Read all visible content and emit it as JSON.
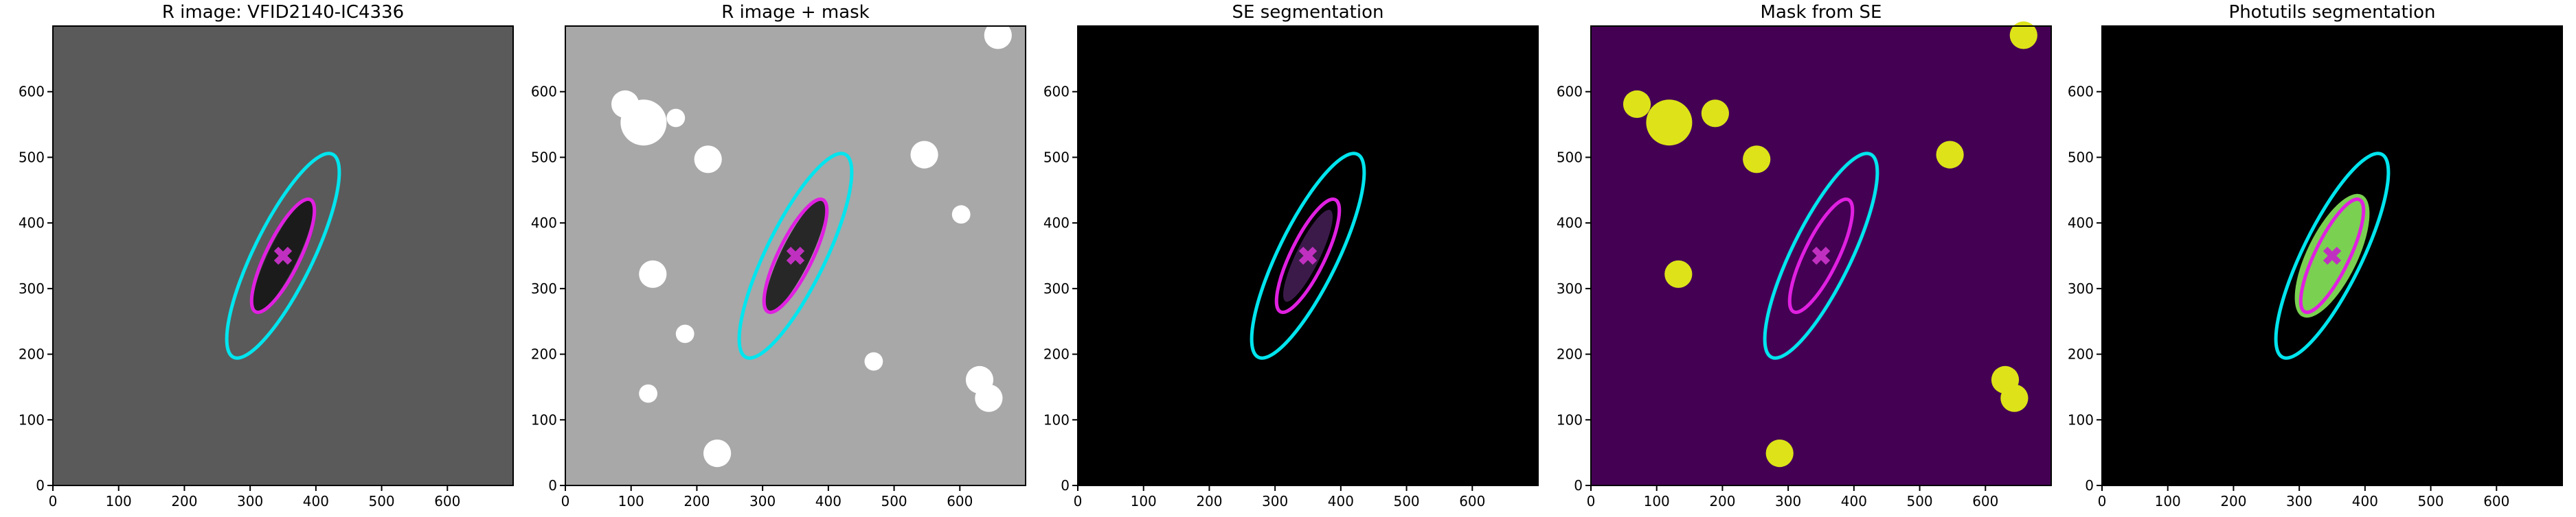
{
  "chart_data": [
    {
      "type": "image",
      "title": "R image: VFID2140-IC4336",
      "background": "#5a5a5a",
      "xlim": [
        0,
        700
      ],
      "ylim": [
        0,
        700
      ],
      "xticks": [
        0,
        100,
        200,
        300,
        400,
        500,
        600
      ],
      "yticks": [
        0,
        100,
        200,
        300,
        400,
        500,
        600
      ],
      "ellipses": [
        {
          "center": [
            350,
            350
          ],
          "semi_major": 172,
          "semi_minor": 45,
          "angle": 64,
          "color": "#00e5ee"
        },
        {
          "center": [
            350,
            350
          ],
          "semi_major": 95,
          "semi_minor": 26,
          "angle": 64,
          "color": "#e020e0"
        }
      ],
      "marker": {
        "x": 350,
        "y": 350,
        "color": "#c030c0"
      }
    },
    {
      "type": "image",
      "title": "R image + mask",
      "background": "#a8a8a8",
      "xlim": [
        0,
        700
      ],
      "ylim": [
        0,
        700
      ],
      "xticks": [
        0,
        100,
        200,
        300,
        400,
        500,
        600
      ],
      "yticks": [
        0,
        100,
        200,
        300,
        400,
        500,
        600
      ],
      "ellipses": [
        {
          "center": [
            350,
            350
          ],
          "semi_major": 172,
          "semi_minor": 45,
          "angle": 64,
          "color": "#00e5ee"
        },
        {
          "center": [
            350,
            350
          ],
          "semi_major": 95,
          "semi_minor": 26,
          "angle": 64,
          "color": "#e020e0"
        }
      ],
      "marker": {
        "x": 350,
        "y": 350,
        "color": "#c030c0"
      }
    },
    {
      "type": "image",
      "title": "SE segmentation",
      "background": "#000000",
      "xlim": [
        0,
        700
      ],
      "ylim": [
        0,
        700
      ],
      "xticks": [
        0,
        100,
        200,
        300,
        400,
        500,
        600
      ],
      "yticks": [
        0,
        100,
        200,
        300,
        400,
        500,
        600
      ],
      "ellipses": [
        {
          "center": [
            350,
            350
          ],
          "semi_major": 172,
          "semi_minor": 45,
          "angle": 64,
          "color": "#00e5ee"
        },
        {
          "center": [
            350,
            350
          ],
          "semi_major": 95,
          "semi_minor": 26,
          "angle": 64,
          "color": "#e020e0"
        }
      ],
      "marker": {
        "x": 350,
        "y": 350,
        "color": "#c030c0"
      }
    },
    {
      "type": "image",
      "title": "Mask from SE",
      "background": "#440154",
      "xlim": [
        0,
        700
      ],
      "ylim": [
        0,
        700
      ],
      "xticks": [
        0,
        100,
        200,
        300,
        400,
        500,
        600
      ],
      "yticks": [
        0,
        100,
        200,
        300,
        400,
        500,
        600
      ],
      "ellipses": [
        {
          "center": [
            350,
            350
          ],
          "semi_major": 172,
          "semi_minor": 45,
          "angle": 64,
          "color": "#00e5ee"
        },
        {
          "center": [
            350,
            350
          ],
          "semi_major": 95,
          "semi_minor": 26,
          "angle": 64,
          "color": "#e020e0"
        }
      ],
      "marker": {
        "x": 350,
        "y": 350,
        "color": "#c030c0"
      }
    },
    {
      "type": "image",
      "title": "Photutils segmentation",
      "background": "#000000",
      "xlim": [
        0,
        700
      ],
      "ylim": [
        0,
        700
      ],
      "xticks": [
        0,
        100,
        200,
        300,
        400,
        500,
        600
      ],
      "yticks": [
        0,
        100,
        200,
        300,
        400,
        500,
        600
      ],
      "ellipses": [
        {
          "center": [
            350,
            350
          ],
          "semi_major": 172,
          "semi_minor": 45,
          "angle": 64,
          "color": "#00e5ee"
        },
        {
          "center": [
            350,
            350
          ],
          "semi_major": 95,
          "semi_minor": 26,
          "angle": 64,
          "color": "#e020e0"
        }
      ],
      "marker": {
        "x": 350,
        "y": 350,
        "color": "#c030c0"
      }
    }
  ]
}
